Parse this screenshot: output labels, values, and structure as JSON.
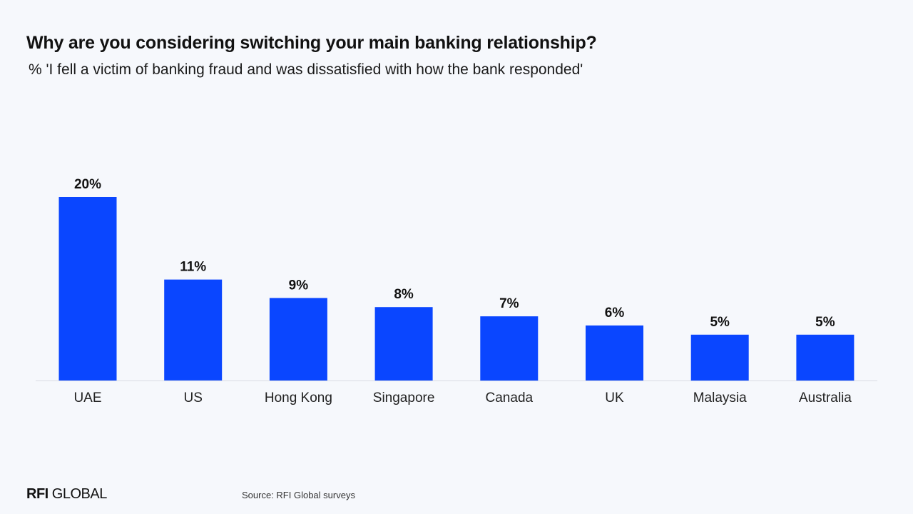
{
  "title": "Why are you considering switching your main banking relationship?",
  "subtitle": "% 'I fell a victim of banking fraud and was dissatisfied with how the bank responded'",
  "footer": {
    "logo_bold": "RFI",
    "logo_light": "GLOBAL",
    "source": "Source: RFI Global surveys"
  },
  "colors": {
    "bar": "#0a46ff",
    "background": "#f6f8fc"
  },
  "chart_data": {
    "type": "bar",
    "title": "Why are you considering switching your main banking relationship?",
    "subtitle": "% 'I fell a victim of banking fraud and was dissatisfied with how the bank responded'",
    "categories": [
      "UAE",
      "US",
      "Hong Kong",
      "Singapore",
      "Canada",
      "UK",
      "Malaysia",
      "Australia"
    ],
    "values": [
      20,
      11,
      9,
      8,
      7,
      6,
      5,
      5
    ],
    "value_labels": [
      "20%",
      "11%",
      "9%",
      "8%",
      "7%",
      "6%",
      "5%",
      "5%"
    ],
    "xlabel": "",
    "ylabel": "",
    "ylim": [
      0,
      20
    ],
    "grid": false,
    "legend": "none"
  }
}
